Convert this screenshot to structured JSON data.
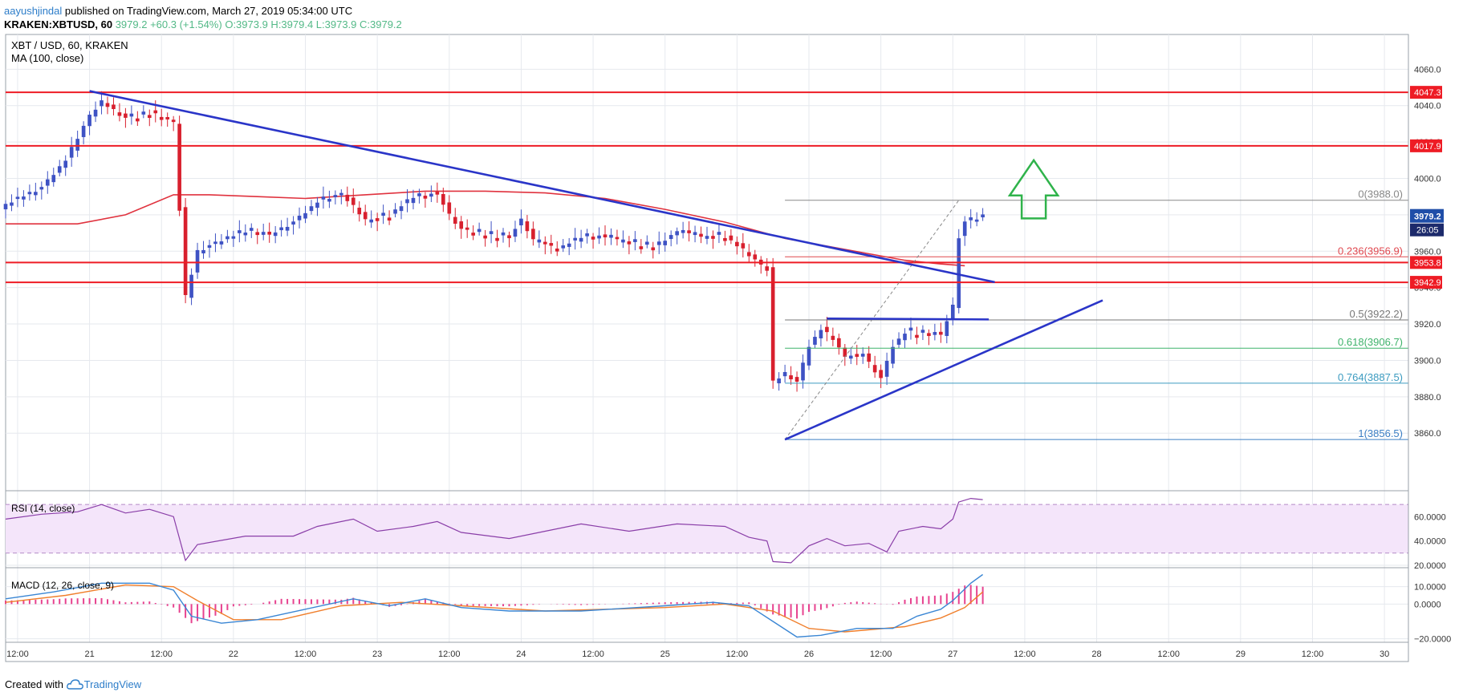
{
  "header": {
    "author": "aayushjindal",
    "published_text": " published on TradingView.com, March 27, 2019 05:34:00 UTC",
    "symbol_line": "KRAKEN:XBTUSD, 60",
    "change": "3979.2 +60.3 (+1.54%)",
    "ohlc": "O:3973.9 H:3979.4 L:3973.9 C:3979.2"
  },
  "footer": {
    "created_with": "Created with",
    "brand": "TradingView",
    "logo_icon": "tradingview-cloud-icon"
  },
  "colors": {
    "bull": "#3e52c4",
    "bear": "#d8202e",
    "ma": "#e0323e",
    "trend": "#2a35c8",
    "level": "#ee1c25",
    "fib_dash": "#888888",
    "rsi": "#8a3ea8",
    "macd": "#3a86d4",
    "signal": "#f07f2c",
    "hist": "#e7428f",
    "arrow": "#2fb34b",
    "price_box": "#1f4ea8",
    "timer_box": "#1c2a6b"
  },
  "chart_data": {
    "type": "candlestick",
    "title": "XBT / USD, 60, KRAKEN",
    "indicator_label": "MA (100, close)",
    "y_ticks": [
      3860,
      3880,
      3900,
      3920,
      3940,
      3960,
      3980,
      4000,
      4020,
      4040,
      4060
    ],
    "ylim": [
      3846,
      4076
    ],
    "x_ticks": [
      {
        "label": "12:00",
        "h": 2
      },
      {
        "label": "21",
        "h": 14
      },
      {
        "label": "12:00",
        "h": 26
      },
      {
        "label": "22",
        "h": 38
      },
      {
        "label": "12:00",
        "h": 50
      },
      {
        "label": "23",
        "h": 62
      },
      {
        "label": "12:00",
        "h": 74
      },
      {
        "label": "24",
        "h": 86
      },
      {
        "label": "12:00",
        "h": 98
      },
      {
        "label": "25",
        "h": 110
      },
      {
        "label": "12:00",
        "h": 122
      },
      {
        "label": "26",
        "h": 134
      },
      {
        "label": "12:00",
        "h": 146
      },
      {
        "label": "27",
        "h": 158
      },
      {
        "label": "12:00",
        "h": 170
      },
      {
        "label": "28",
        "h": 182
      },
      {
        "label": "12:00",
        "h": 194
      },
      {
        "label": "29",
        "h": 206
      },
      {
        "label": "12:00",
        "h": 218
      },
      {
        "label": "30",
        "h": 230
      }
    ],
    "xlim": [
      0,
      234
    ],
    "last_price": "3979.2",
    "countdown": "26:05",
    "levels": [
      {
        "label": "4047.3",
        "value": 4047.3
      },
      {
        "label": "4017.9",
        "value": 4017.9
      },
      {
        "label": "3953.8",
        "value": 3953.8
      },
      {
        "label": "3942.9",
        "value": 3942.9
      }
    ],
    "fib": {
      "x_start": 130,
      "x_end": 234,
      "items": [
        {
          "label": "0(3988.0)",
          "value": 3988.0,
          "color": "#888888"
        },
        {
          "label": "0.236(3956.9)",
          "value": 3956.9,
          "color": "#e0484f"
        },
        {
          "label": "0.5(3922.2)",
          "value": 3922.2,
          "color": "#777777"
        },
        {
          "label": "0.618(3906.7)",
          "value": 3906.7,
          "color": "#3fb36b"
        },
        {
          "label": "0.764(3887.5)",
          "value": 3887.5,
          "color": "#3c9bc0"
        },
        {
          "label": "1(3856.5)",
          "value": 3856.5,
          "color": "#3c7fc4"
        }
      ]
    },
    "trendlines": [
      {
        "x1": 14,
        "y1": 4048,
        "x2": 165,
        "y2": 3943
      },
      {
        "x1": 130,
        "y1": 3856.5,
        "x2": 183,
        "y2": 3933
      },
      {
        "x1": 137,
        "y1": 3923,
        "x2": 164,
        "y2": 3922.5
      }
    ],
    "arrow": {
      "x": 171.5,
      "y_bottom": 3978,
      "y_top": 4010
    },
    "candle_anchors": [
      {
        "h": 0,
        "v": 3986
      },
      {
        "h": 6,
        "v": 3995
      },
      {
        "h": 10,
        "v": 4010
      },
      {
        "h": 14,
        "v": 4035
      },
      {
        "h": 16,
        "v": 4042
      },
      {
        "h": 20,
        "v": 4033
      },
      {
        "h": 24,
        "v": 4036
      },
      {
        "h": 28,
        "v": 4031
      },
      {
        "h": 30,
        "v": 3935
      },
      {
        "h": 32,
        "v": 3960
      },
      {
        "h": 36,
        "v": 3966
      },
      {
        "h": 40,
        "v": 3971
      },
      {
        "h": 44,
        "v": 3969
      },
      {
        "h": 48,
        "v": 3976
      },
      {
        "h": 52,
        "v": 3987
      },
      {
        "h": 56,
        "v": 3992
      },
      {
        "h": 60,
        "v": 3977
      },
      {
        "h": 64,
        "v": 3980
      },
      {
        "h": 68,
        "v": 3990
      },
      {
        "h": 72,
        "v": 3992
      },
      {
        "h": 74,
        "v": 3980
      },
      {
        "h": 76,
        "v": 3972
      },
      {
        "h": 80,
        "v": 3968
      },
      {
        "h": 84,
        "v": 3969
      },
      {
        "h": 86,
        "v": 3977
      },
      {
        "h": 88,
        "v": 3966
      },
      {
        "h": 92,
        "v": 3961
      },
      {
        "h": 96,
        "v": 3968
      },
      {
        "h": 100,
        "v": 3968
      },
      {
        "h": 104,
        "v": 3964
      },
      {
        "h": 108,
        "v": 3962
      },
      {
        "h": 112,
        "v": 3971
      },
      {
        "h": 116,
        "v": 3968
      },
      {
        "h": 120,
        "v": 3968
      },
      {
        "h": 124,
        "v": 3958
      },
      {
        "h": 127,
        "v": 3950
      },
      {
        "h": 128,
        "v": 3888
      },
      {
        "h": 130,
        "v": 3893
      },
      {
        "h": 132,
        "v": 3888
      },
      {
        "h": 134,
        "v": 3908
      },
      {
        "h": 136,
        "v": 3917
      },
      {
        "h": 138,
        "v": 3912
      },
      {
        "h": 140,
        "v": 3902
      },
      {
        "h": 143,
        "v": 3903
      },
      {
        "h": 146,
        "v": 3890
      },
      {
        "h": 148,
        "v": 3908
      },
      {
        "h": 150,
        "v": 3915
      },
      {
        "h": 154,
        "v": 3915
      },
      {
        "h": 156,
        "v": 3914
      },
      {
        "h": 158,
        "v": 3930
      },
      {
        "h": 159,
        "v": 3968
      },
      {
        "h": 160,
        "v": 3976
      },
      {
        "h": 162,
        "v": 3978
      },
      {
        "h": 163,
        "v": 3979.2
      }
    ],
    "ma_points": [
      {
        "h": 0,
        "v": 3975
      },
      {
        "h": 12,
        "v": 3975
      },
      {
        "h": 20,
        "v": 3980
      },
      {
        "h": 28,
        "v": 3991
      },
      {
        "h": 34,
        "v": 3991
      },
      {
        "h": 42,
        "v": 3990
      },
      {
        "h": 50,
        "v": 3989
      },
      {
        "h": 60,
        "v": 3991
      },
      {
        "h": 70,
        "v": 3993
      },
      {
        "h": 80,
        "v": 3993
      },
      {
        "h": 90,
        "v": 3992
      },
      {
        "h": 100,
        "v": 3989
      },
      {
        "h": 110,
        "v": 3983
      },
      {
        "h": 120,
        "v": 3976
      },
      {
        "h": 130,
        "v": 3967
      },
      {
        "h": 140,
        "v": 3961
      },
      {
        "h": 150,
        "v": 3955
      },
      {
        "h": 156,
        "v": 3953
      },
      {
        "h": 160,
        "v": 3952
      }
    ],
    "rsi": {
      "label": "RSI (14, close)",
      "ticks": [
        20,
        40,
        60
      ],
      "tick_labels": [
        "20.0000",
        "40.0000",
        "60.0000"
      ],
      "ylim": [
        18,
        80
      ],
      "band": [
        30,
        70
      ],
      "points": [
        {
          "h": 0,
          "v": 58
        },
        {
          "h": 6,
          "v": 62
        },
        {
          "h": 12,
          "v": 64
        },
        {
          "h": 16,
          "v": 70
        },
        {
          "h": 20,
          "v": 63
        },
        {
          "h": 24,
          "v": 66
        },
        {
          "h": 28,
          "v": 60
        },
        {
          "h": 30,
          "v": 24
        },
        {
          "h": 32,
          "v": 37
        },
        {
          "h": 40,
          "v": 44
        },
        {
          "h": 48,
          "v": 44
        },
        {
          "h": 52,
          "v": 52
        },
        {
          "h": 58,
          "v": 58
        },
        {
          "h": 62,
          "v": 48
        },
        {
          "h": 68,
          "v": 52
        },
        {
          "h": 72,
          "v": 56
        },
        {
          "h": 76,
          "v": 47
        },
        {
          "h": 84,
          "v": 42
        },
        {
          "h": 90,
          "v": 48
        },
        {
          "h": 96,
          "v": 54
        },
        {
          "h": 104,
          "v": 48
        },
        {
          "h": 112,
          "v": 54
        },
        {
          "h": 120,
          "v": 52
        },
        {
          "h": 124,
          "v": 43
        },
        {
          "h": 127,
          "v": 40
        },
        {
          "h": 128,
          "v": 23
        },
        {
          "h": 131,
          "v": 22
        },
        {
          "h": 134,
          "v": 36
        },
        {
          "h": 137,
          "v": 42
        },
        {
          "h": 140,
          "v": 36
        },
        {
          "h": 144,
          "v": 38
        },
        {
          "h": 147,
          "v": 31
        },
        {
          "h": 149,
          "v": 48
        },
        {
          "h": 153,
          "v": 52
        },
        {
          "h": 156,
          "v": 50
        },
        {
          "h": 158,
          "v": 58
        },
        {
          "h": 159,
          "v": 72
        },
        {
          "h": 161,
          "v": 75
        },
        {
          "h": 163,
          "v": 74
        }
      ]
    },
    "macd": {
      "label": "MACD (12, 26, close, 9)",
      "ticks": [
        -20,
        0,
        10
      ],
      "tick_labels": [
        "−20.0000",
        "0.0000",
        "10.0000"
      ],
      "ylim": [
        -22,
        20
      ],
      "macd_points": [
        {
          "h": 0,
          "v": 3
        },
        {
          "h": 8,
          "v": 7
        },
        {
          "h": 16,
          "v": 12
        },
        {
          "h": 24,
          "v": 12
        },
        {
          "h": 28,
          "v": 8
        },
        {
          "h": 31,
          "v": -7
        },
        {
          "h": 36,
          "v": -11
        },
        {
          "h": 42,
          "v": -9
        },
        {
          "h": 50,
          "v": -3
        },
        {
          "h": 58,
          "v": 3
        },
        {
          "h": 64,
          "v": -1
        },
        {
          "h": 70,
          "v": 3
        },
        {
          "h": 76,
          "v": -2
        },
        {
          "h": 84,
          "v": -4
        },
        {
          "h": 96,
          "v": -4
        },
        {
          "h": 110,
          "v": -1
        },
        {
          "h": 118,
          "v": 1
        },
        {
          "h": 124,
          "v": -1
        },
        {
          "h": 128,
          "v": -10
        },
        {
          "h": 132,
          "v": -19
        },
        {
          "h": 136,
          "v": -18
        },
        {
          "h": 142,
          "v": -14
        },
        {
          "h": 148,
          "v": -14
        },
        {
          "h": 152,
          "v": -7
        },
        {
          "h": 156,
          "v": -3
        },
        {
          "h": 158,
          "v": 2
        },
        {
          "h": 161,
          "v": 12
        },
        {
          "h": 163,
          "v": 17
        }
      ],
      "signal_points": [
        {
          "h": 0,
          "v": 1
        },
        {
          "h": 10,
          "v": 5
        },
        {
          "h": 20,
          "v": 11
        },
        {
          "h": 28,
          "v": 10
        },
        {
          "h": 32,
          "v": 2
        },
        {
          "h": 38,
          "v": -9
        },
        {
          "h": 46,
          "v": -9
        },
        {
          "h": 56,
          "v": -1
        },
        {
          "h": 66,
          "v": 1
        },
        {
          "h": 76,
          "v": -1
        },
        {
          "h": 90,
          "v": -4
        },
        {
          "h": 110,
          "v": -2
        },
        {
          "h": 120,
          "v": 0
        },
        {
          "h": 128,
          "v": -4
        },
        {
          "h": 134,
          "v": -14
        },
        {
          "h": 140,
          "v": -16
        },
        {
          "h": 150,
          "v": -13
        },
        {
          "h": 156,
          "v": -8
        },
        {
          "h": 160,
          "v": -2
        },
        {
          "h": 163,
          "v": 7
        }
      ]
    }
  }
}
